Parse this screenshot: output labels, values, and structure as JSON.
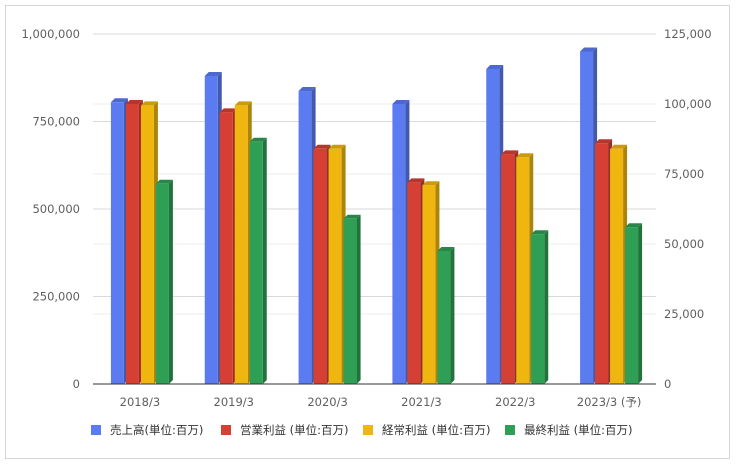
{
  "chart_data": {
    "type": "bar",
    "categories": [
      "2018/3",
      "2019/3",
      "2020/3",
      "2021/3",
      "2022/3",
      "2023/3 (予)"
    ],
    "series": [
      {
        "name": "売上高(単位:百万)",
        "axis": "left",
        "color": "#5b7bf1",
        "values": [
          805000,
          880000,
          837000,
          800000,
          900000,
          950000
        ]
      },
      {
        "name": "営業利益 (単位:百万)",
        "axis": "right",
        "color": "#d63f33",
        "values": [
          100000,
          97000,
          84000,
          72000,
          82000,
          86000
        ]
      },
      {
        "name": "経常利益 (単位:百万)",
        "axis": "right",
        "color": "#efb60f",
        "values": [
          99500,
          99500,
          84000,
          71000,
          81000,
          84000
        ]
      },
      {
        "name": "最終利益 (単位:百万)",
        "axis": "right",
        "color": "#2f9f55",
        "values": [
          71500,
          86500,
          59000,
          47500,
          53500,
          56000
        ]
      }
    ],
    "ylim_left": [
      0,
      1000000
    ],
    "yticks_left": [
      "0",
      "250,000",
      "500,000",
      "750,000",
      "1,000,000"
    ],
    "ylim_right": [
      0,
      125000
    ],
    "yticks_right": [
      "0",
      "25,000",
      "50,000",
      "75,000",
      "100,000",
      "125,000"
    ],
    "grid": true,
    "legend_position": "bottom",
    "style": "3d-bars"
  }
}
